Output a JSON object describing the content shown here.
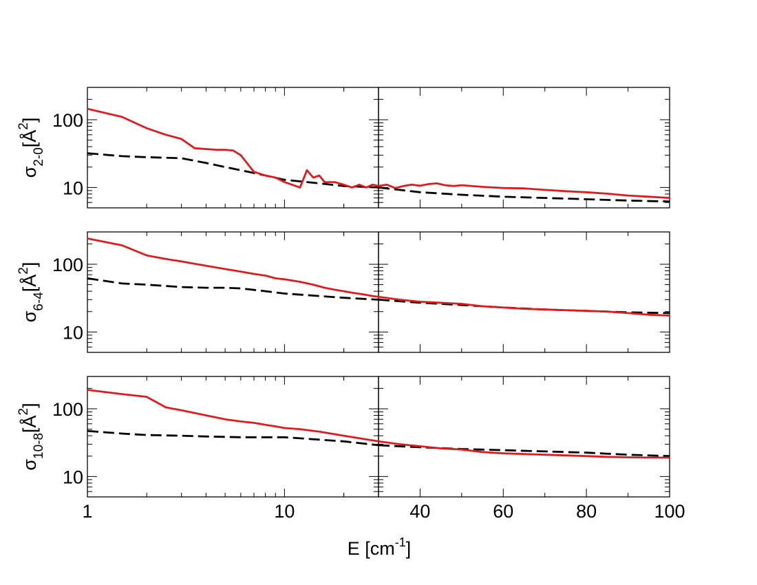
{
  "chart_data": {
    "type": "line",
    "xlabel": {
      "base": "E [cm",
      "sup": "-1",
      "tail": "]"
    },
    "x_tick_labels": {
      "left": [
        {
          "value": 1,
          "label": "1"
        },
        {
          "value": 10,
          "label": "10"
        }
      ],
      "right": [
        {
          "value": 40,
          "label": "40"
        },
        {
          "value": 60,
          "label": "60"
        },
        {
          "value": 80,
          "label": "80"
        },
        {
          "value": 100,
          "label": "100"
        }
      ]
    },
    "left_xscale": "log",
    "left_xlim": [
      1,
      30
    ],
    "right_xscale": "linear",
    "right_xlim": [
      30,
      100
    ],
    "yscale": "log",
    "ylim": [
      5,
      300
    ],
    "y_tick_labels": [
      {
        "value": 10,
        "label": "10"
      },
      {
        "value": 100,
        "label": "100"
      }
    ],
    "series_styles": [
      {
        "color": "#e31a1c",
        "dash": "solid"
      },
      {
        "color": "#000000",
        "dash": "dashed"
      }
    ],
    "panels": [
      {
        "ylabel": {
          "sigma": "σ",
          "sub": "2-0",
          "pre": "[Å",
          "sup": "2",
          "post": "]"
        },
        "red": {
          "left": [
            [
              1,
              145
            ],
            [
              1.5,
              110
            ],
            [
              2,
              75
            ],
            [
              2.5,
              60
            ],
            [
              3,
              52
            ],
            [
              3.5,
              38
            ],
            [
              4.5,
              36
            ],
            [
              5,
              36
            ],
            [
              5.5,
              35
            ],
            [
              6,
              30
            ],
            [
              7,
              17
            ],
            [
              8,
              15
            ],
            [
              9,
              14
            ],
            [
              10,
              12
            ],
            [
              12,
              10
            ],
            [
              13,
              18
            ],
            [
              14,
              14
            ],
            [
              15,
              15
            ],
            [
              16,
              12
            ],
            [
              18,
              12
            ],
            [
              20,
              11
            ],
            [
              22,
              10
            ],
            [
              24,
              11
            ],
            [
              26,
              10
            ],
            [
              28,
              11
            ],
            [
              30,
              10.5
            ]
          ],
          "right": [
            [
              30,
              10.5
            ],
            [
              32,
              11
            ],
            [
              34,
              9.8
            ],
            [
              36,
              10.5
            ],
            [
              38,
              11
            ],
            [
              40,
              10.6
            ],
            [
              42,
              11.2
            ],
            [
              44,
              11.5
            ],
            [
              46,
              10.8
            ],
            [
              48,
              10.5
            ],
            [
              50,
              10.8
            ],
            [
              55,
              10.2
            ],
            [
              60,
              9.8
            ],
            [
              65,
              9.7
            ],
            [
              70,
              9.2
            ],
            [
              75,
              8.8
            ],
            [
              80,
              8.5
            ],
            [
              85,
              8.1
            ],
            [
              90,
              7.6
            ],
            [
              95,
              7.3
            ],
            [
              100,
              7
            ]
          ]
        },
        "black": {
          "left": [
            [
              1,
              32
            ],
            [
              1.5,
              29
            ],
            [
              2,
              28
            ],
            [
              3,
              27
            ],
            [
              4,
              23
            ],
            [
              5,
              20
            ],
            [
              6,
              18
            ],
            [
              8,
              15
            ],
            [
              10,
              13
            ],
            [
              15,
              11.5
            ],
            [
              20,
              10.5
            ],
            [
              30,
              10
            ]
          ],
          "right": [
            [
              30,
              10
            ],
            [
              40,
              8.5
            ],
            [
              50,
              7.8
            ],
            [
              60,
              7.3
            ],
            [
              70,
              7
            ],
            [
              80,
              6.7
            ],
            [
              90,
              6.4
            ],
            [
              100,
              6.2
            ]
          ]
        }
      },
      {
        "ylabel": {
          "sigma": "σ",
          "sub": "6-4",
          "pre": "[Å",
          "sup": "2",
          "post": "]"
        },
        "red": {
          "left": [
            [
              1,
              240
            ],
            [
              1.5,
              190
            ],
            [
              2,
              135
            ],
            [
              2.5,
              120
            ],
            [
              3,
              110
            ],
            [
              4,
              95
            ],
            [
              5,
              85
            ],
            [
              6,
              78
            ],
            [
              7,
              72
            ],
            [
              8,
              68
            ],
            [
              9,
              62
            ],
            [
              10,
              60
            ],
            [
              12,
              55
            ],
            [
              14,
              50
            ],
            [
              16,
              45
            ],
            [
              18,
              42
            ],
            [
              20,
              40
            ],
            [
              22,
              38
            ],
            [
              25,
              36
            ],
            [
              28,
              34
            ],
            [
              30,
              33
            ]
          ],
          "right": [
            [
              30,
              33
            ],
            [
              35,
              30
            ],
            [
              40,
              28
            ],
            [
              45,
              27
            ],
            [
              50,
              26
            ],
            [
              55,
              24
            ],
            [
              60,
              23
            ],
            [
              65,
              22
            ],
            [
              70,
              21.5
            ],
            [
              75,
              21
            ],
            [
              80,
              20.5
            ],
            [
              85,
              20
            ],
            [
              90,
              19
            ],
            [
              95,
              18
            ],
            [
              100,
              17.5
            ]
          ]
        },
        "black": {
          "left": [
            [
              1,
              62
            ],
            [
              1.5,
              52
            ],
            [
              2,
              50
            ],
            [
              3,
              46
            ],
            [
              4,
              45
            ],
            [
              5,
              45
            ],
            [
              6,
              44
            ],
            [
              8,
              40
            ],
            [
              10,
              37
            ],
            [
              15,
              34
            ],
            [
              20,
              32
            ],
            [
              30,
              30
            ]
          ],
          "right": [
            [
              30,
              30
            ],
            [
              40,
              27
            ],
            [
              50,
              25
            ],
            [
              60,
              23
            ],
            [
              70,
              21.5
            ],
            [
              80,
              20.5
            ],
            [
              90,
              19.5
            ],
            [
              100,
              19
            ]
          ]
        }
      },
      {
        "ylabel": {
          "sigma": "σ",
          "sub": "10-8",
          "pre": "[Å",
          "sup": "2",
          "post": "]"
        },
        "red": {
          "left": [
            [
              1,
              190
            ],
            [
              1.5,
              165
            ],
            [
              2,
              150
            ],
            [
              2.5,
              105
            ],
            [
              3,
              95
            ],
            [
              4,
              80
            ],
            [
              5,
              70
            ],
            [
              6,
              65
            ],
            [
              7,
              62
            ],
            [
              8,
              58
            ],
            [
              9,
              55
            ],
            [
              10,
              52
            ],
            [
              12,
              50
            ],
            [
              15,
              46
            ],
            [
              20,
              40
            ],
            [
              25,
              36
            ],
            [
              30,
              33
            ]
          ],
          "right": [
            [
              30,
              33
            ],
            [
              35,
              30
            ],
            [
              40,
              28
            ],
            [
              45,
              26
            ],
            [
              50,
              25
            ],
            [
              55,
              23
            ],
            [
              60,
              22
            ],
            [
              65,
              21.5
            ],
            [
              70,
              21
            ],
            [
              75,
              20.5
            ],
            [
              80,
              20
            ],
            [
              85,
              19.5
            ],
            [
              90,
              19.2
            ],
            [
              95,
              19
            ],
            [
              100,
              19
            ]
          ]
        },
        "black": {
          "left": [
            [
              1,
              47
            ],
            [
              1.5,
              43
            ],
            [
              2,
              41
            ],
            [
              3,
              40
            ],
            [
              4,
              39
            ],
            [
              6,
              38
            ],
            [
              8,
              38
            ],
            [
              10,
              38
            ],
            [
              15,
              35
            ],
            [
              20,
              33
            ],
            [
              30,
              29
            ]
          ],
          "right": [
            [
              30,
              29
            ],
            [
              40,
              27
            ],
            [
              50,
              25.5
            ],
            [
              60,
              24.5
            ],
            [
              70,
              23.5
            ],
            [
              80,
              22.5
            ],
            [
              90,
              21
            ],
            [
              100,
              20
            ]
          ]
        }
      }
    ]
  }
}
